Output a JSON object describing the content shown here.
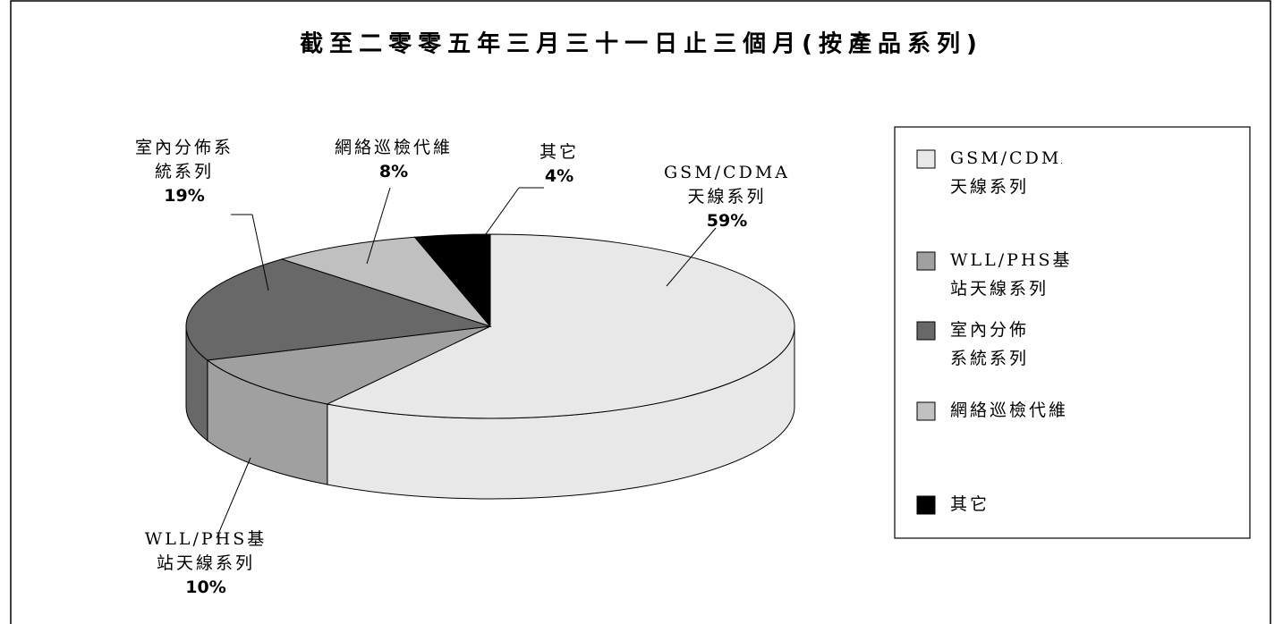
{
  "chart_data": {
    "type": "pie",
    "title": "截至二零零五年三月三十一日止三個月(按產品系列)",
    "categories": [
      "GSM/CDMA天線系列",
      "WLL/PHS基站天線系列",
      "室內分佈系統系列",
      "網絡巡檢代維",
      "其它"
    ],
    "values": [
      59,
      10,
      19,
      8,
      4
    ],
    "value_labels": [
      "59%",
      "10%",
      "19%",
      "8%",
      "4%"
    ],
    "colors": [
      "#e8e8e8",
      "#a0a0a0",
      "#686868",
      "#c0c0c0",
      "#000000"
    ],
    "legend": "right"
  }
}
